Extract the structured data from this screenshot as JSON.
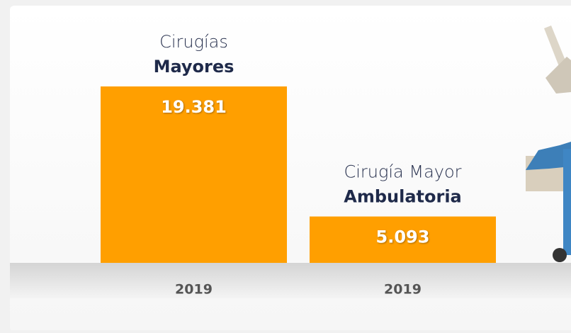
{
  "chart_data": {
    "type": "bar",
    "categories": [
      [
        "Cirugías",
        "Mayores"
      ],
      [
        "Cirugía Mayor",
        "Ambulatoria"
      ]
    ],
    "values": [
      19381,
      5093
    ],
    "value_labels": [
      "19.381",
      "5.093"
    ],
    "periods": [
      "2019",
      "2019"
    ],
    "color": "#ff9f00"
  }
}
